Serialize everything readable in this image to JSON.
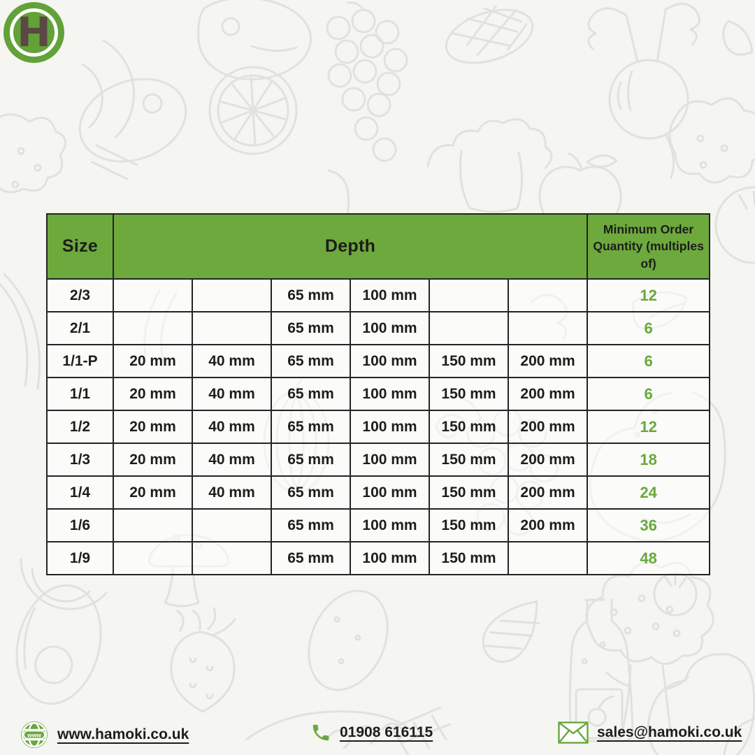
{
  "logo": {
    "letter": "H"
  },
  "table": {
    "headers": {
      "size": "Size",
      "depth": "Depth",
      "moq": "Minimum Order Quantity (multiples of)"
    },
    "rows": [
      {
        "size": "2/3",
        "depths": [
          "",
          "",
          "65 mm",
          "100 mm",
          "",
          ""
        ],
        "moq": "12"
      },
      {
        "size": "2/1",
        "depths": [
          "",
          "",
          "65 mm",
          "100 mm",
          "",
          ""
        ],
        "moq": "6"
      },
      {
        "size": "1/1-P",
        "depths": [
          "20 mm",
          "40 mm",
          "65 mm",
          "100 mm",
          "150 mm",
          "200 mm"
        ],
        "moq": "6"
      },
      {
        "size": "1/1",
        "depths": [
          "20 mm",
          "40 mm",
          "65 mm",
          "100 mm",
          "150 mm",
          "200 mm"
        ],
        "moq": "6"
      },
      {
        "size": "1/2",
        "depths": [
          "20 mm",
          "40 mm",
          "65 mm",
          "100 mm",
          "150 mm",
          "200 mm"
        ],
        "moq": "12"
      },
      {
        "size": "1/3",
        "depths": [
          "20 mm",
          "40 mm",
          "65 mm",
          "100 mm",
          "150 mm",
          "200 mm"
        ],
        "moq": "18"
      },
      {
        "size": "1/4",
        "depths": [
          "20 mm",
          "40 mm",
          "65 mm",
          "100 mm",
          "150 mm",
          "200 mm"
        ],
        "moq": "24"
      },
      {
        "size": "1/6",
        "depths": [
          "",
          "",
          "65 mm",
          "100 mm",
          "150 mm",
          "200 mm"
        ],
        "moq": "36"
      },
      {
        "size": "1/9",
        "depths": [
          "",
          "",
          "65 mm",
          "100 mm",
          "150 mm",
          ""
        ],
        "moq": "48"
      }
    ]
  },
  "footer": {
    "website": "www.hamoki.co.uk",
    "website_icon": "globe-www-icon",
    "phone": "01908 616115",
    "phone_icon": "phone-icon",
    "email": "sales@hamoki.co.uk",
    "email_icon": "envelope-icon"
  },
  "colors": {
    "header_green": "#6da93c",
    "accent_green": "#69a83d",
    "logo_green": "#62a239",
    "logo_brown": "#5c4843",
    "text_dark": "#1d1d1b",
    "doodle_gray": "#e1e1dd",
    "background": "#f5f5f2"
  }
}
